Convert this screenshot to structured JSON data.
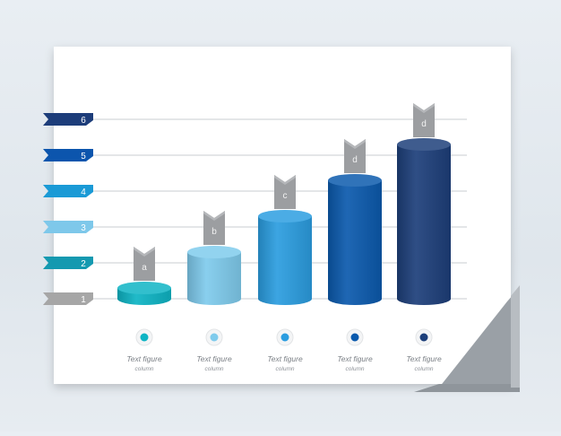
{
  "chart_data": {
    "type": "bar",
    "style": "3d-cylinder",
    "categories": [
      "a",
      "b",
      "c",
      "d",
      "d"
    ],
    "values": [
      1.3,
      2.3,
      3.3,
      4.3,
      5.3
    ],
    "bar_colors": [
      "#0eb4c4",
      "#7fcbec",
      "#2b9de0",
      "#0b5aad",
      "#1d3f7a"
    ],
    "y_ticks": [
      "1",
      "2",
      "3",
      "4",
      "5",
      "6"
    ],
    "y_tick_colors": [
      "#a6a6a6",
      "#1499b0",
      "#7ec8ea",
      "#1a9ad6",
      "#0c55ad",
      "#1d3d7a"
    ],
    "ylim": [
      1,
      6
    ],
    "grid": true,
    "column_labels": [
      {
        "title": "Text figure",
        "subtitle": "column"
      },
      {
        "title": "Text figure",
        "subtitle": "column"
      },
      {
        "title": "Text figure",
        "subtitle": "column"
      },
      {
        "title": "Text figure",
        "subtitle": "column"
      },
      {
        "title": "Text figure",
        "subtitle": "column"
      }
    ]
  }
}
